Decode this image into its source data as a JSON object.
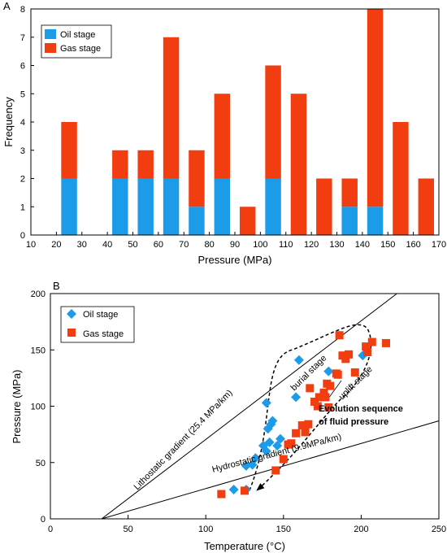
{
  "colors": {
    "oil": "#1c9be8",
    "gas": "#f23d10"
  },
  "chart_data": [
    {
      "panel_label": "A",
      "type": "bar",
      "stacked": true,
      "xlabel": "Pressure (MPa)",
      "ylabel": "Frequency",
      "xlim": [
        10,
        170
      ],
      "ylim": [
        0,
        8
      ],
      "xticks": [
        10,
        20,
        30,
        40,
        50,
        60,
        70,
        80,
        90,
        100,
        110,
        120,
        130,
        140,
        150,
        160,
        170
      ],
      "yticks": [
        0,
        1,
        2,
        3,
        4,
        5,
        6,
        7,
        8
      ],
      "grid": false,
      "legend_position": "top-left",
      "x": [
        25,
        45,
        55,
        65,
        75,
        85,
        95,
        105,
        115,
        125,
        135,
        145,
        155,
        165
      ],
      "series": [
        {
          "name": "Oil stage",
          "color": "#1c9be8",
          "values": [
            2,
            2,
            2,
            2,
            1,
            2,
            0,
            2,
            0,
            0,
            1,
            1,
            0,
            0
          ]
        },
        {
          "name": "Gas stage",
          "color": "#f23d10",
          "values": [
            2,
            1,
            1,
            5,
            2,
            3,
            1,
            4,
            5,
            2,
            1,
            7,
            4,
            2
          ]
        }
      ]
    },
    {
      "panel_label": "B",
      "type": "scatter",
      "xlabel": "Temperature (°C)",
      "ylabel": "Pressure (MPa)",
      "xlim": [
        0,
        250
      ],
      "ylim": [
        0,
        200
      ],
      "xticks": [
        0,
        50,
        100,
        150,
        200,
        250
      ],
      "yticks": [
        0,
        50,
        100,
        150,
        200
      ],
      "grid": false,
      "legend_position": "top-left",
      "series": [
        {
          "name": "Oil stage",
          "marker": "diamond",
          "color": "#1c9be8",
          "points": [
            [
              118,
              26
            ],
            [
              126,
              47
            ],
            [
              130,
              48
            ],
            [
              132,
              54
            ],
            [
              137,
              65
            ],
            [
              139,
              60
            ],
            [
              140,
              80
            ],
            [
              141,
              68
            ],
            [
              142,
              84
            ],
            [
              143,
              87
            ],
            [
              146,
              65
            ],
            [
              148,
              71
            ],
            [
              139,
              103
            ],
            [
              158,
              108
            ],
            [
              160,
              141
            ],
            [
              179,
              131
            ],
            [
              201,
              145
            ],
            [
              126,
              26
            ]
          ]
        },
        {
          "name": "Gas stage",
          "marker": "square",
          "color": "#f23d10",
          "points": [
            [
              110,
              22
            ],
            [
              125,
              25
            ],
            [
              145,
              43
            ],
            [
              150,
              53
            ],
            [
              153,
              66
            ],
            [
              155,
              67
            ],
            [
              158,
              76
            ],
            [
              162,
              83
            ],
            [
              164,
              77
            ],
            [
              166,
              84
            ],
            [
              167,
              116
            ],
            [
              170,
              104
            ],
            [
              172,
              100
            ],
            [
              173,
              108
            ],
            [
              176,
              112
            ],
            [
              177,
              108
            ],
            [
              178,
              120
            ],
            [
              179,
              99
            ],
            [
              180,
              118
            ],
            [
              184,
              129
            ],
            [
              185,
              128
            ],
            [
              186,
              163
            ],
            [
              188,
              145
            ],
            [
              190,
              142
            ],
            [
              192,
              146
            ],
            [
              196,
              130
            ],
            [
              203,
              153
            ],
            [
              204,
              148
            ],
            [
              207,
              157
            ],
            [
              216,
              156
            ]
          ]
        }
      ],
      "reference_lines": [
        {
          "label": "Lithostatic gradient (25.4 MPa/km)",
          "points": [
            [
              33,
              0
            ],
            [
              223,
              200
            ]
          ]
        },
        {
          "label": "Hydrostatic gradient (9.9MPa/km)",
          "points": [
            [
              33,
              0
            ],
            [
              250,
              87
            ]
          ]
        }
      ],
      "annotations": {
        "burial": "burial stage",
        "uplift": "uplift stage",
        "evolution_line1": "Evolution sequence",
        "evolution_line2": "of fluid pressure"
      }
    }
  ]
}
